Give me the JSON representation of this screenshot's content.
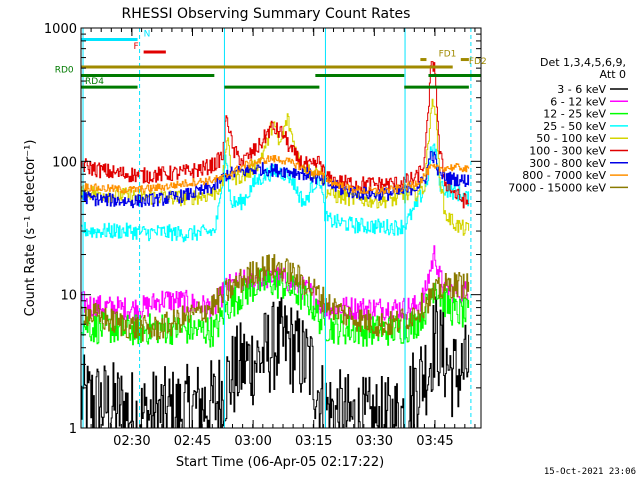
{
  "chart_data": {
    "type": "line",
    "title": "RHESSI Observing Summary Count Rates",
    "xlabel": "Start Time (06-Apr-05 02:17:22)",
    "ylabel": "Count Rate (s⁻¹ detector⁻¹)",
    "y_log": true,
    "ylim": [
      1,
      1000
    ],
    "xlim_minutes": [
      0,
      99
    ],
    "xtick_labels": [
      "02:30",
      "02:45",
      "03:00",
      "03:15",
      "03:30",
      "03:45"
    ],
    "xtick_minutes": [
      12.6,
      27.6,
      42.6,
      57.6,
      72.6,
      87.6
    ],
    "ytick_labels": [
      "1",
      "10",
      "100",
      "1000"
    ],
    "ytick_values": [
      1,
      10,
      100,
      1000
    ],
    "legend_header": [
      "Det 1,3,4,5,6,9,",
      "Att 0"
    ],
    "timestamp": "15-Oct-2021 23:06",
    "night_boundaries_minutes": [
      0.5,
      35.5,
      60.5,
      80.2
    ],
    "saa_boundaries_minutes": [
      14.5,
      96.5
    ],
    "flag_bars": [
      {
        "label": "N",
        "color": "#00e5ff",
        "segments": [
          [
            0,
            14
          ]
        ],
        "level": 820,
        "label_at": 15.5
      },
      {
        "label": "F",
        "color": "#e00000",
        "segments": [
          [
            15.5,
            21
          ]
        ],
        "level": 660,
        "label_at": 13
      },
      {
        "label": "FD1",
        "color": "#a08a00",
        "segments": [
          [
            84,
            85.5
          ],
          [
            94,
            96
          ]
        ],
        "level": 580,
        "label_at": 88.5
      },
      {
        "label": "FD2",
        "color": "#a08a00",
        "segments": [
          [
            0,
            92
          ]
        ],
        "level": 510,
        "label_at": 96
      },
      {
        "label": "RD0",
        "color": "#007a00",
        "segments": [
          [
            0,
            33
          ],
          [
            58,
            80
          ],
          [
            86,
            99
          ]
        ],
        "level": 440,
        "label_at": -6.5
      },
      {
        "label": "RD4",
        "color": "#007a00",
        "segments": [
          [
            0,
            14
          ],
          [
            35.5,
            59
          ],
          [
            80,
            96
          ]
        ],
        "level": 360,
        "label_at": 1
      }
    ],
    "series": [
      {
        "name": "3 - 6 keV",
        "color": "#000000",
        "points": [
          [
            0,
            1.6
          ],
          [
            5,
            1.5
          ],
          [
            10,
            1.4
          ],
          [
            14,
            1.2
          ],
          [
            20,
            1.3
          ],
          [
            25,
            1.3
          ],
          [
            30,
            1.5
          ],
          [
            33,
            1.5
          ],
          [
            36,
            2.2
          ],
          [
            40,
            3.0
          ],
          [
            44,
            3.3
          ],
          [
            48,
            4.2
          ],
          [
            51,
            4.4
          ],
          [
            54,
            3.5
          ],
          [
            57,
            2.8
          ],
          [
            60,
            1.4
          ],
          [
            65,
            1.2
          ],
          [
            70,
            1.1
          ],
          [
            76,
            1.1
          ],
          [
            80,
            1.3
          ],
          [
            83,
            2.2
          ],
          [
            86,
            2.9
          ],
          [
            87.5,
            5.0
          ],
          [
            89,
            3.8
          ],
          [
            92,
            2.5
          ],
          [
            94,
            2.6
          ],
          [
            96,
            3.0
          ]
        ]
      },
      {
        "name": "6 - 12 keV",
        "color": "#ff00ff",
        "points": [
          [
            0,
            8.8
          ],
          [
            3,
            8.2
          ],
          [
            8,
            8.0
          ],
          [
            12,
            7.8
          ],
          [
            16,
            8.1
          ],
          [
            20,
            9.2
          ],
          [
            25,
            8.9
          ],
          [
            30,
            8.2
          ],
          [
            33,
            8.0
          ],
          [
            36,
            11.5
          ],
          [
            40,
            12.5
          ],
          [
            44,
            13.0
          ],
          [
            48,
            13.5
          ],
          [
            51,
            12.8
          ],
          [
            54,
            11.5
          ],
          [
            57,
            10.2
          ],
          [
            60,
            8.0
          ],
          [
            65,
            8.0
          ],
          [
            70,
            7.9
          ],
          [
            76,
            7.9
          ],
          [
            80,
            7.9
          ],
          [
            83,
            8.2
          ],
          [
            85,
            10.0
          ],
          [
            86.5,
            16.0
          ],
          [
            87.5,
            21.0
          ],
          [
            88.5,
            14.0
          ],
          [
            90,
            11.0
          ],
          [
            93,
            10.5
          ],
          [
            96,
            10.5
          ]
        ]
      },
      {
        "name": "12 - 25 keV",
        "color": "#00ff00",
        "points": [
          [
            0,
            6.2
          ],
          [
            3,
            5.6
          ],
          [
            8,
            5.6
          ],
          [
            12,
            5.4
          ],
          [
            16,
            5.5
          ],
          [
            20,
            5.6
          ],
          [
            25,
            5.5
          ],
          [
            30,
            5.4
          ],
          [
            33,
            5.3
          ],
          [
            36,
            8.0
          ],
          [
            40,
            10.2
          ],
          [
            44,
            12.0
          ],
          [
            47,
            12.4
          ],
          [
            50,
            11.8
          ],
          [
            54,
            10.0
          ],
          [
            57,
            8.5
          ],
          [
            60,
            5.8
          ],
          [
            65,
            5.5
          ],
          [
            70,
            5.4
          ],
          [
            76,
            5.4
          ],
          [
            80,
            5.6
          ],
          [
            83,
            6.2
          ],
          [
            86,
            8.5
          ],
          [
            87.5,
            12.5
          ],
          [
            89,
            9.5
          ],
          [
            92,
            7.5
          ],
          [
            96,
            7.0
          ]
        ]
      },
      {
        "name": "25 - 50 keV",
        "color": "#00ffff",
        "points": [
          [
            0,
            31
          ],
          [
            3,
            30
          ],
          [
            8,
            30
          ],
          [
            12,
            30
          ],
          [
            16,
            29
          ],
          [
            20,
            29.5
          ],
          [
            25,
            28.5
          ],
          [
            30,
            29
          ],
          [
            33,
            30
          ],
          [
            34.5,
            52
          ],
          [
            35.5,
            130
          ],
          [
            37,
            48
          ],
          [
            40,
            50
          ],
          [
            43,
            70
          ],
          [
            46,
            80
          ],
          [
            48,
            85
          ],
          [
            50,
            82
          ],
          [
            52,
            75
          ],
          [
            54,
            55
          ],
          [
            55.5,
            48
          ],
          [
            57,
            65
          ],
          [
            59,
            75
          ],
          [
            60.5,
            37
          ],
          [
            63,
            35
          ],
          [
            68,
            33
          ],
          [
            73,
            32.5
          ],
          [
            78,
            32
          ],
          [
            80,
            33
          ],
          [
            82.5,
            44
          ],
          [
            84,
            55
          ],
          [
            85.5,
            68
          ],
          [
            86.5,
            115
          ],
          [
            87.5,
            130
          ],
          [
            88.5,
            70
          ],
          [
            90,
            62
          ],
          [
            93,
            58
          ],
          [
            96,
            52
          ]
        ]
      },
      {
        "name": "50 - 100 keV",
        "color": "#d4d400",
        "points": [
          [
            0,
            60
          ],
          [
            3,
            58
          ],
          [
            8,
            56
          ],
          [
            12,
            55
          ],
          [
            16,
            54
          ],
          [
            20,
            54
          ],
          [
            25,
            53
          ],
          [
            30,
            55
          ],
          [
            33,
            58
          ],
          [
            35,
            70
          ],
          [
            36,
            150
          ],
          [
            37.5,
            75
          ],
          [
            41,
            80
          ],
          [
            44,
            100
          ],
          [
            46,
            140
          ],
          [
            47.5,
            200
          ],
          [
            49,
            130
          ],
          [
            51,
            210
          ],
          [
            52.5,
            140
          ],
          [
            54,
            100
          ],
          [
            57,
            80
          ],
          [
            59,
            90
          ],
          [
            60.5,
            60
          ],
          [
            63,
            55
          ],
          [
            68,
            52
          ],
          [
            73,
            51
          ],
          [
            78,
            52
          ],
          [
            80,
            55
          ],
          [
            83,
            58
          ],
          [
            85,
            65
          ],
          [
            86.5,
            250
          ],
          [
            87.5,
            270
          ],
          [
            88.5,
            90
          ],
          [
            90,
            40
          ],
          [
            93,
            33
          ],
          [
            96,
            30
          ]
        ]
      },
      {
        "name": "100 - 300 keV",
        "color": "#e00000",
        "points": [
          [
            0,
            95
          ],
          [
            3,
            88
          ],
          [
            8,
            82
          ],
          [
            12,
            80
          ],
          [
            16,
            78
          ],
          [
            20,
            80
          ],
          [
            25,
            82
          ],
          [
            30,
            88
          ],
          [
            33,
            95
          ],
          [
            35,
            110
          ],
          [
            36,
            230
          ],
          [
            37.5,
            120
          ],
          [
            40,
            100
          ],
          [
            44,
            130
          ],
          [
            47,
            180
          ],
          [
            50,
            160
          ],
          [
            52,
            120
          ],
          [
            54,
            100
          ],
          [
            57,
            90
          ],
          [
            59,
            100
          ],
          [
            60.5,
            75
          ],
          [
            63,
            70
          ],
          [
            68,
            68
          ],
          [
            73,
            67
          ],
          [
            78,
            68
          ],
          [
            80,
            70
          ],
          [
            83,
            75
          ],
          [
            85,
            100
          ],
          [
            86.5,
            480
          ],
          [
            87.5,
            550
          ],
          [
            88.5,
            130
          ],
          [
            90,
            70
          ],
          [
            93,
            55
          ],
          [
            96,
            48
          ]
        ]
      },
      {
        "name": "300 - 800 keV",
        "color": "#0000e6",
        "points": [
          [
            0,
            55
          ],
          [
            3,
            52
          ],
          [
            8,
            51
          ],
          [
            12,
            50
          ],
          [
            16,
            51
          ],
          [
            20,
            52
          ],
          [
            25,
            55
          ],
          [
            30,
            60
          ],
          [
            33,
            65
          ],
          [
            36,
            80
          ],
          [
            40,
            84
          ],
          [
            44,
            88
          ],
          [
            48,
            86
          ],
          [
            52,
            84
          ],
          [
            56,
            80
          ],
          [
            60,
            70
          ],
          [
            64,
            62
          ],
          [
            68,
            58
          ],
          [
            72,
            57
          ],
          [
            76,
            57
          ],
          [
            80,
            60
          ],
          [
            83,
            65
          ],
          [
            85,
            72
          ],
          [
            86.5,
            115
          ],
          [
            87.5,
            105
          ],
          [
            88.5,
            80
          ],
          [
            91,
            75
          ],
          [
            94,
            72
          ],
          [
            96,
            72
          ]
        ]
      },
      {
        "name": "800 - 7000 keV",
        "color": "#ff9000",
        "points": [
          [
            0,
            65
          ],
          [
            4,
            63
          ],
          [
            8,
            62
          ],
          [
            12,
            61
          ],
          [
            16,
            62
          ],
          [
            20,
            64
          ],
          [
            24,
            67
          ],
          [
            28,
            70
          ],
          [
            32,
            72
          ],
          [
            35,
            75
          ],
          [
            38,
            85
          ],
          [
            41,
            95
          ],
          [
            44,
            100
          ],
          [
            47,
            105
          ],
          [
            50,
            102
          ],
          [
            53,
            95
          ],
          [
            56,
            85
          ],
          [
            59,
            80
          ],
          [
            62,
            70
          ],
          [
            66,
            63
          ],
          [
            70,
            60
          ],
          [
            74,
            60
          ],
          [
            78,
            62
          ],
          [
            81,
            65
          ],
          [
            84,
            72
          ],
          [
            86.5,
            90
          ],
          [
            88,
            88
          ],
          [
            91,
            90
          ],
          [
            94,
            90
          ],
          [
            96,
            85
          ]
        ]
      },
      {
        "name": "7000 - 15000 keV",
        "color": "#8a7a00",
        "points": [
          [
            0,
            7.5
          ],
          [
            3,
            7.0
          ],
          [
            6,
            6.5
          ],
          [
            10,
            6.0
          ],
          [
            14,
            5.6
          ],
          [
            18,
            5.5
          ],
          [
            22,
            6.0
          ],
          [
            26,
            6.8
          ],
          [
            30,
            7.5
          ],
          [
            33,
            8.5
          ],
          [
            36,
            10.5
          ],
          [
            40,
            13.0
          ],
          [
            43,
            15.0
          ],
          [
            46,
            16.2
          ],
          [
            49,
            16.0
          ],
          [
            52,
            14.5
          ],
          [
            55,
            12.5
          ],
          [
            58,
            10.5
          ],
          [
            61,
            8.5
          ],
          [
            65,
            7.2
          ],
          [
            69,
            6.5
          ],
          [
            73,
            6.0
          ],
          [
            77,
            6.0
          ],
          [
            81,
            6.8
          ],
          [
            84,
            8.0
          ],
          [
            87,
            10.0
          ],
          [
            90,
            11.5
          ],
          [
            93,
            12.0
          ],
          [
            96,
            11.5
          ]
        ]
      }
    ]
  }
}
